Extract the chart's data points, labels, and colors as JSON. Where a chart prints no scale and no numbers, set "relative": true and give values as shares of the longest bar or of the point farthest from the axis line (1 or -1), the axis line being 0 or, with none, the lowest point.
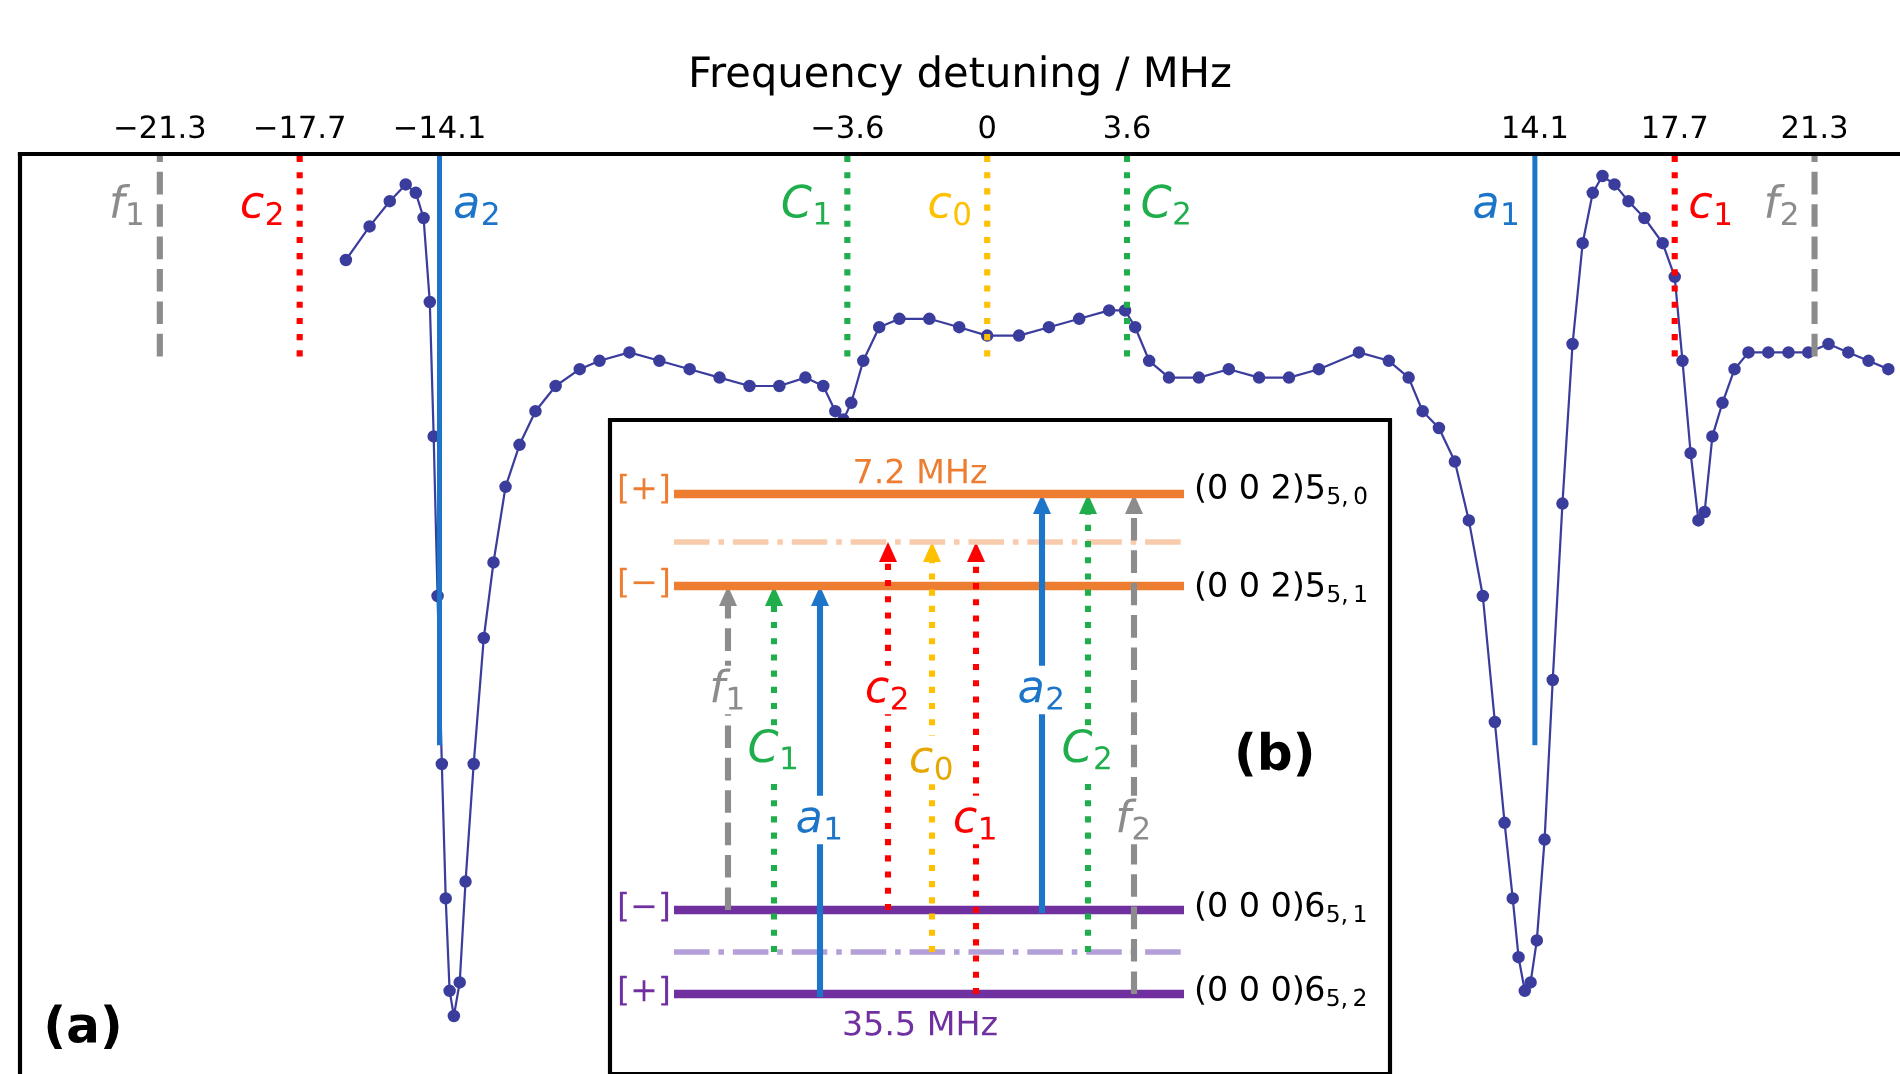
{
  "chart_data": {
    "type": "line",
    "relative": true,
    "xlabel": "Frequency detuning / MHz",
    "xlim": [
      -24.9,
      23.5
    ],
    "xticks": [
      {
        "value": -21.3,
        "label": "−21.3"
      },
      {
        "value": -17.7,
        "label": "−17.7"
      },
      {
        "value": -14.1,
        "label": "−14.1"
      },
      {
        "value": -3.6,
        "label": "−3.6"
      },
      0,
      3.6,
      14.1,
      17.7,
      21.3
    ],
    "tick_labels": "x",
    "grid": false,
    "legend": false,
    "marker": "circle",
    "line_style": "solid",
    "series": [
      {
        "color": "#3a3d9c",
        "x": [
          -16.51,
          -15.9,
          -15.38,
          -14.97,
          -14.71,
          -14.51,
          -14.35,
          -14.25,
          -14.15,
          -14.04,
          -13.94,
          -13.84,
          -13.73,
          -13.58,
          -13.43,
          -13.22,
          -12.96,
          -12.71,
          -12.4,
          -12.04,
          -11.63,
          -11.11,
          -10.49,
          -9.98,
          -9.21,
          -8.44,
          -7.66,
          -6.89,
          -6.12,
          -5.35,
          -4.68,
          -4.22,
          -3.91,
          -3.7,
          -3.5,
          -3.19,
          -2.78,
          -2.26,
          -1.49,
          -0.72,
          0,
          0.82,
          1.59,
          2.37,
          3.14,
          3.55,
          3.81,
          4.17,
          4.68,
          5.45,
          6.22,
          7.0,
          7.77,
          8.54,
          9.57,
          10.34,
          10.85,
          11.21,
          11.63,
          12.04,
          12.4,
          12.76,
          13.07,
          13.32,
          13.53,
          13.68,
          13.84,
          13.99,
          14.15,
          14.35,
          14.56,
          14.81,
          15.07,
          15.33,
          15.59,
          15.84,
          16.15,
          16.51,
          16.92,
          17.39,
          17.7,
          17.9,
          18.11,
          18.31,
          18.47,
          18.67,
          18.93,
          19.24,
          19.6,
          20.11,
          20.63,
          21.14,
          21.66,
          22.17,
          22.69,
          23.2
        ],
        "values": [
          0.9,
          0.94,
          0.97,
          0.99,
          0.98,
          0.95,
          0.85,
          0.69,
          0.5,
          0.3,
          0.14,
          0.03,
          0,
          0.04,
          0.16,
          0.3,
          0.45,
          0.54,
          0.63,
          0.68,
          0.72,
          0.75,
          0.77,
          0.78,
          0.79,
          0.78,
          0.77,
          0.76,
          0.75,
          0.75,
          0.76,
          0.75,
          0.72,
          0.71,
          0.73,
          0.78,
          0.82,
          0.83,
          0.83,
          0.82,
          0.81,
          0.81,
          0.82,
          0.83,
          0.84,
          0.84,
          0.82,
          0.78,
          0.76,
          0.76,
          0.77,
          0.76,
          0.76,
          0.77,
          0.79,
          0.78,
          0.76,
          0.72,
          0.7,
          0.66,
          0.59,
          0.5,
          0.35,
          0.23,
          0.14,
          0.07,
          0.03,
          0.04,
          0.09,
          0.21,
          0.4,
          0.61,
          0.8,
          0.92,
          0.98,
          1.0,
          0.99,
          0.97,
          0.95,
          0.92,
          0.88,
          0.78,
          0.67,
          0.59,
          0.6,
          0.69,
          0.73,
          0.77,
          0.79,
          0.79,
          0.79,
          0.79,
          0.8,
          0.79,
          0.78,
          0.77
        ]
      }
    ],
    "ref_lines": [
      {
        "axis": "x",
        "value": -21.3,
        "label": "f$_{1}$",
        "color": "#8c8c8c",
        "line_style": "dashed"
      },
      {
        "axis": "x",
        "value": -17.7,
        "label": "c$_{2}$",
        "color": "#ff0000",
        "line_style": "dotted"
      },
      {
        "axis": "x",
        "value": -14.1,
        "label": "a$_{2}$",
        "color": "#1c75c8",
        "line_style": "solid"
      },
      {
        "axis": "x",
        "value": -3.6,
        "label": "C$_{1}$",
        "color": "#1fae4b",
        "line_style": "dotted"
      },
      {
        "axis": "x",
        "value": 0,
        "label": "c$_{0}$",
        "color": "#ffc000",
        "line_style": "dotted"
      },
      {
        "axis": "x",
        "value": 3.6,
        "label": "C$_{2}$",
        "color": "#1fae4b",
        "line_style": "dotted"
      },
      {
        "axis": "x",
        "value": 14.1,
        "label": "a$_{1}$",
        "color": "#1c75c8",
        "line_style": "solid"
      },
      {
        "axis": "x",
        "value": 17.7,
        "label": "c$_{1}$",
        "color": "#ff0000",
        "line_style": "dotted"
      },
      {
        "axis": "x",
        "value": 21.3,
        "label": "f$_{2}$",
        "color": "#8c8c8c",
        "line_style": "dashed"
      }
    ],
    "annotations": [
      "(a)",
      "(b)",
      "7.2 MHz",
      "35.5 MHz",
      "[+]",
      "[−]",
      "[−]",
      "[+]",
      "(0 0 2)5$_{5,0}$",
      "(0 0 2)5$_{5,1}$",
      "(0 0 0)6$_{5,1}$",
      "(0 0 0)6$_{5,2}$",
      "f$_{1}$",
      "C$_{1}$",
      "a$_{1}$",
      "c$_{2}$",
      "c$_{0}$",
      "c$_{1}$",
      "a$_{2}$",
      "C$_{2}$",
      "f$_{2}$"
    ]
  }
}
